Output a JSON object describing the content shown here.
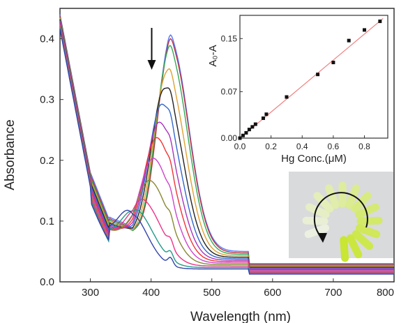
{
  "chart_data": [
    {
      "type": "line",
      "xlabel": "Wavelength (nm)",
      "ylabel": "Absorbance",
      "xlim": [
        250,
        800
      ],
      "ylim": [
        0,
        0.45
      ],
      "x_ticks": [
        "300",
        "400",
        "500",
        "600",
        "700",
        "800"
      ],
      "y_ticks": [
        "0.0",
        "0.1",
        "0.2",
        "0.3",
        "0.4"
      ],
      "annotation": "downward arrow at ~400 nm indicating decreasing absorbance",
      "series": [
        {
          "color": "#5577ff",
          "peak_wavelength": 432,
          "peak_absorbance": 0.37
        },
        {
          "color": "#bb3344",
          "peak_wavelength": 432,
          "peak_absorbance": 0.366
        },
        {
          "color": "#33aa55",
          "peak_wavelength": 430,
          "peak_absorbance": 0.357
        },
        {
          "color": "#e0a030",
          "peak_wavelength": 426,
          "peak_absorbance": 0.322
        },
        {
          "color": "#222222",
          "peak_wavelength": 422,
          "peak_absorbance": 0.297
        },
        {
          "color": "#3366cc",
          "peak_wavelength": 418,
          "peak_absorbance": 0.272
        },
        {
          "color": "#aa33bb",
          "peak_wavelength": 414,
          "peak_absorbance": 0.242
        },
        {
          "color": "#ee3333",
          "peak_wavelength": 410,
          "peak_absorbance": 0.216
        },
        {
          "color": "#cc44cc",
          "peak_wavelength": 405,
          "peak_absorbance": 0.18
        },
        {
          "color": "#888833",
          "peak_wavelength": 400,
          "peak_absorbance": 0.14
        },
        {
          "color": "#ee3388",
          "peak_wavelength": 390,
          "peak_absorbance": 0.1
        },
        {
          "color": "#229988",
          "peak_wavelength": 380,
          "peak_absorbance": 0.075
        },
        {
          "color": "#3344aa",
          "peak_wavelength": 370,
          "peak_absorbance": 0.065
        }
      ]
    },
    {
      "type": "scatter",
      "xlabel": "Hg Conc.(μM)",
      "ylabel": "A₀-A",
      "xlim": [
        0,
        0.95
      ],
      "ylim": [
        0,
        0.185
      ],
      "x_ticks": [
        "0.0",
        "0.2",
        "0.4",
        "0.6",
        "0.8"
      ],
      "y_ticks": [
        "0.00",
        "0.07",
        "0.15"
      ],
      "points": [
        {
          "x": 0.0,
          "y": 0.0
        },
        {
          "x": 0.02,
          "y": 0.004
        },
        {
          "x": 0.04,
          "y": 0.008
        },
        {
          "x": 0.06,
          "y": 0.013
        },
        {
          "x": 0.08,
          "y": 0.017
        },
        {
          "x": 0.1,
          "y": 0.021
        },
        {
          "x": 0.15,
          "y": 0.03
        },
        {
          "x": 0.17,
          "y": 0.036
        },
        {
          "x": 0.3,
          "y": 0.062
        },
        {
          "x": 0.5,
          "y": 0.096
        },
        {
          "x": 0.6,
          "y": 0.114
        },
        {
          "x": 0.7,
          "y": 0.147
        },
        {
          "x": 0.8,
          "y": 0.163
        },
        {
          "x": 0.9,
          "y": 0.176
        }
      ],
      "fit": {
        "intercept": 0.0,
        "slope": 0.196,
        "color": "#f08080"
      }
    }
  ],
  "photo": {
    "description_icon": "vial-fan-photo",
    "arrow_icon": "curved-arrow-icon"
  }
}
